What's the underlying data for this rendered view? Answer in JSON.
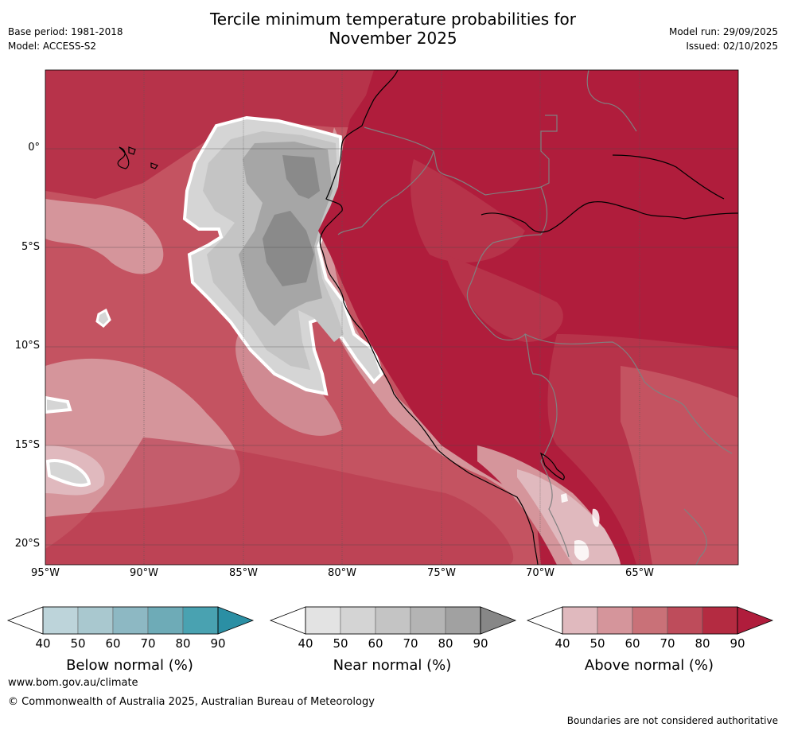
{
  "header": {
    "title_line1": "Tercile minimum temperature probabilities for",
    "title_line2": "November 2025",
    "base_period": "Base period: 1981-2018",
    "model": "Model: ACCESS-S2",
    "model_run": "Model run: 29/09/2025",
    "issued": "Issued: 02/10/2025"
  },
  "map": {
    "lon_labels": [
      "95°W",
      "90°W",
      "85°W",
      "80°W",
      "75°W",
      "70°W",
      "65°W"
    ],
    "lat_labels": [
      "0°",
      "5°S",
      "10°S",
      "15°S",
      "20°S"
    ]
  },
  "colorbars": [
    {
      "title": "Below normal (%)",
      "ticks": [
        "40",
        "50",
        "60",
        "70",
        "80",
        "90"
      ],
      "colors": [
        "#ffffff",
        "#bdd4da",
        "#a9c8cf",
        "#8db8c3",
        "#6eabb7",
        "#49a2b1",
        "#2b8fa4"
      ]
    },
    {
      "title": "Near normal (%)",
      "ticks": [
        "40",
        "50",
        "60",
        "70",
        "80",
        "90"
      ],
      "colors": [
        "#ffffff",
        "#e3e3e3",
        "#d4d4d4",
        "#c4c4c4",
        "#b4b4b4",
        "#a1a1a1",
        "#878787"
      ]
    },
    {
      "title": "Above normal (%)",
      "ticks": [
        "40",
        "50",
        "60",
        "70",
        "80",
        "90"
      ],
      "colors": [
        "#ffffff",
        "#e0b9be",
        "#d5959b",
        "#c97178",
        "#be4c5b",
        "#b42b41",
        "#b01d3c"
      ]
    }
  ],
  "footer": {
    "url": "www.bom.gov.au/climate",
    "copyright": "© Commonwealth of Australia 2025, Australian Bureau of Meteorology",
    "note": "Boundaries are not considered authoritative"
  }
}
